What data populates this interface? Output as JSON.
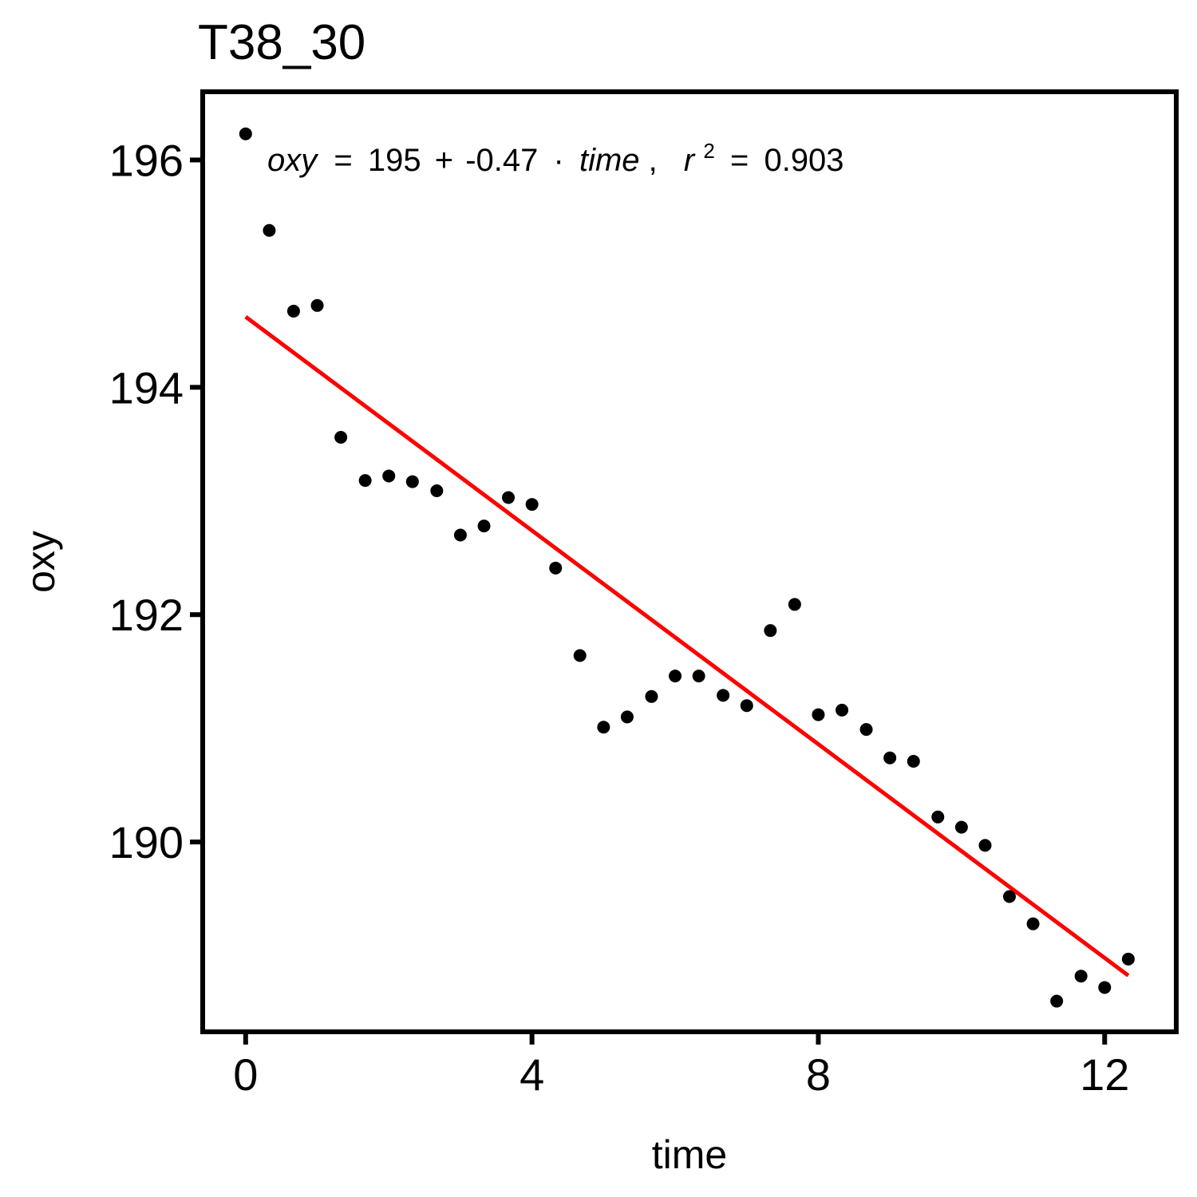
{
  "chart_data": {
    "type": "scatter",
    "title": "T38_30",
    "xlabel": "time",
    "ylabel": "oxy",
    "xlim": [
      -0.6,
      13.0
    ],
    "ylim": [
      188.33,
      196.6
    ],
    "xticks": [
      0,
      4,
      8,
      12
    ],
    "yticks": [
      190,
      192,
      194,
      196
    ],
    "grid": false,
    "legend": "none",
    "point_color": "#000000",
    "fit_color": "#ff0000",
    "fit": {
      "intercept": 194.62,
      "slope": -0.47,
      "x_range": [
        0,
        12.33
      ]
    },
    "annotation": {
      "lhs": "oxy",
      "eq": "=",
      "intercept": "195",
      "plus": "+",
      "slope": "-0.47",
      "dot": "·",
      "var": "time",
      "comma": ",",
      "r": "r",
      "sup": "2",
      "eq2": "=",
      "r2": "0.903"
    },
    "series": [
      {
        "x": [
          0,
          0.33,
          0.67,
          1.0,
          1.33,
          1.67,
          2.0,
          2.33,
          2.67,
          3.0,
          3.33,
          3.67,
          4.0,
          4.33,
          4.67,
          5.0,
          5.33,
          5.67,
          6.0,
          6.33,
          6.67,
          7.0,
          7.33,
          7.67,
          8.0,
          8.33,
          8.67,
          9.0,
          9.33,
          9.67,
          10.0,
          10.33,
          10.67,
          11.0,
          11.33,
          11.67,
          12.0,
          12.33
        ],
        "y": [
          196.23,
          195.38,
          194.67,
          194.72,
          193.56,
          193.18,
          193.22,
          193.17,
          193.09,
          192.7,
          192.78,
          193.03,
          192.97,
          192.41,
          191.64,
          191.01,
          191.1,
          191.28,
          191.46,
          191.46,
          191.29,
          191.2,
          191.86,
          192.09,
          191.12,
          191.16,
          190.99,
          190.74,
          190.71,
          190.22,
          190.13,
          189.97,
          189.52,
          189.28,
          188.6,
          188.82,
          188.72,
          188.97
        ]
      }
    ]
  }
}
